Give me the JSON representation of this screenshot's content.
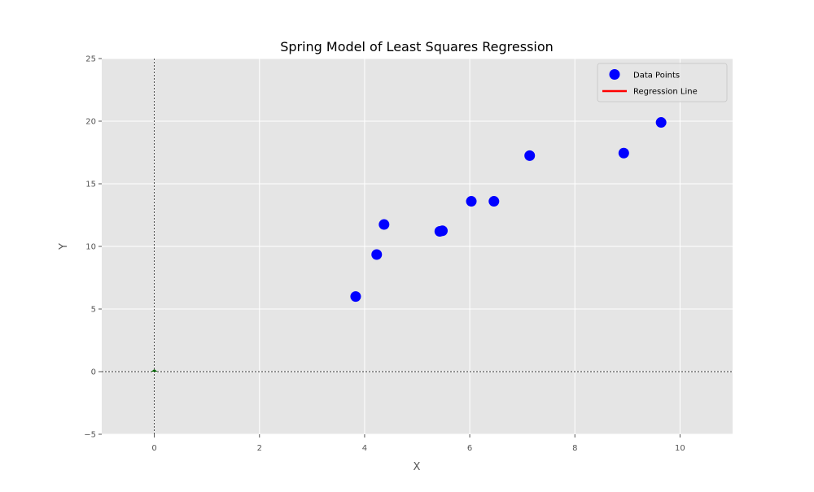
{
  "chart_data": {
    "type": "scatter",
    "title": "Spring Model of Least Squares Regression",
    "xlabel": "X",
    "ylabel": "Y",
    "xlim": [
      -1,
      11
    ],
    "ylim": [
      -5,
      25
    ],
    "x_ticks": [
      0,
      2,
      4,
      6,
      8,
      10
    ],
    "y_ticks": [
      -5,
      0,
      5,
      10,
      15,
      20,
      25
    ],
    "grid": true,
    "legend_position": "top-right",
    "series": [
      {
        "name": "Data Points",
        "kind": "scatter",
        "color": "#0000ff",
        "points": [
          {
            "x": 3.83,
            "y": 6.0
          },
          {
            "x": 4.23,
            "y": 9.35
          },
          {
            "x": 4.37,
            "y": 11.75
          },
          {
            "x": 5.43,
            "y": 11.2
          },
          {
            "x": 5.48,
            "y": 11.25
          },
          {
            "x": 6.03,
            "y": 13.6
          },
          {
            "x": 6.46,
            "y": 13.6
          },
          {
            "x": 7.14,
            "y": 17.25
          },
          {
            "x": 8.93,
            "y": 17.45
          },
          {
            "x": 9.64,
            "y": 19.9
          }
        ]
      },
      {
        "name": "Regression Line",
        "kind": "line",
        "color": "#ff0000",
        "points": []
      }
    ],
    "reference_lines": {
      "x": 0,
      "y": 0,
      "color": "#000000"
    },
    "origin_marker": {
      "x": 0,
      "y": 0,
      "color": "#006400"
    }
  }
}
